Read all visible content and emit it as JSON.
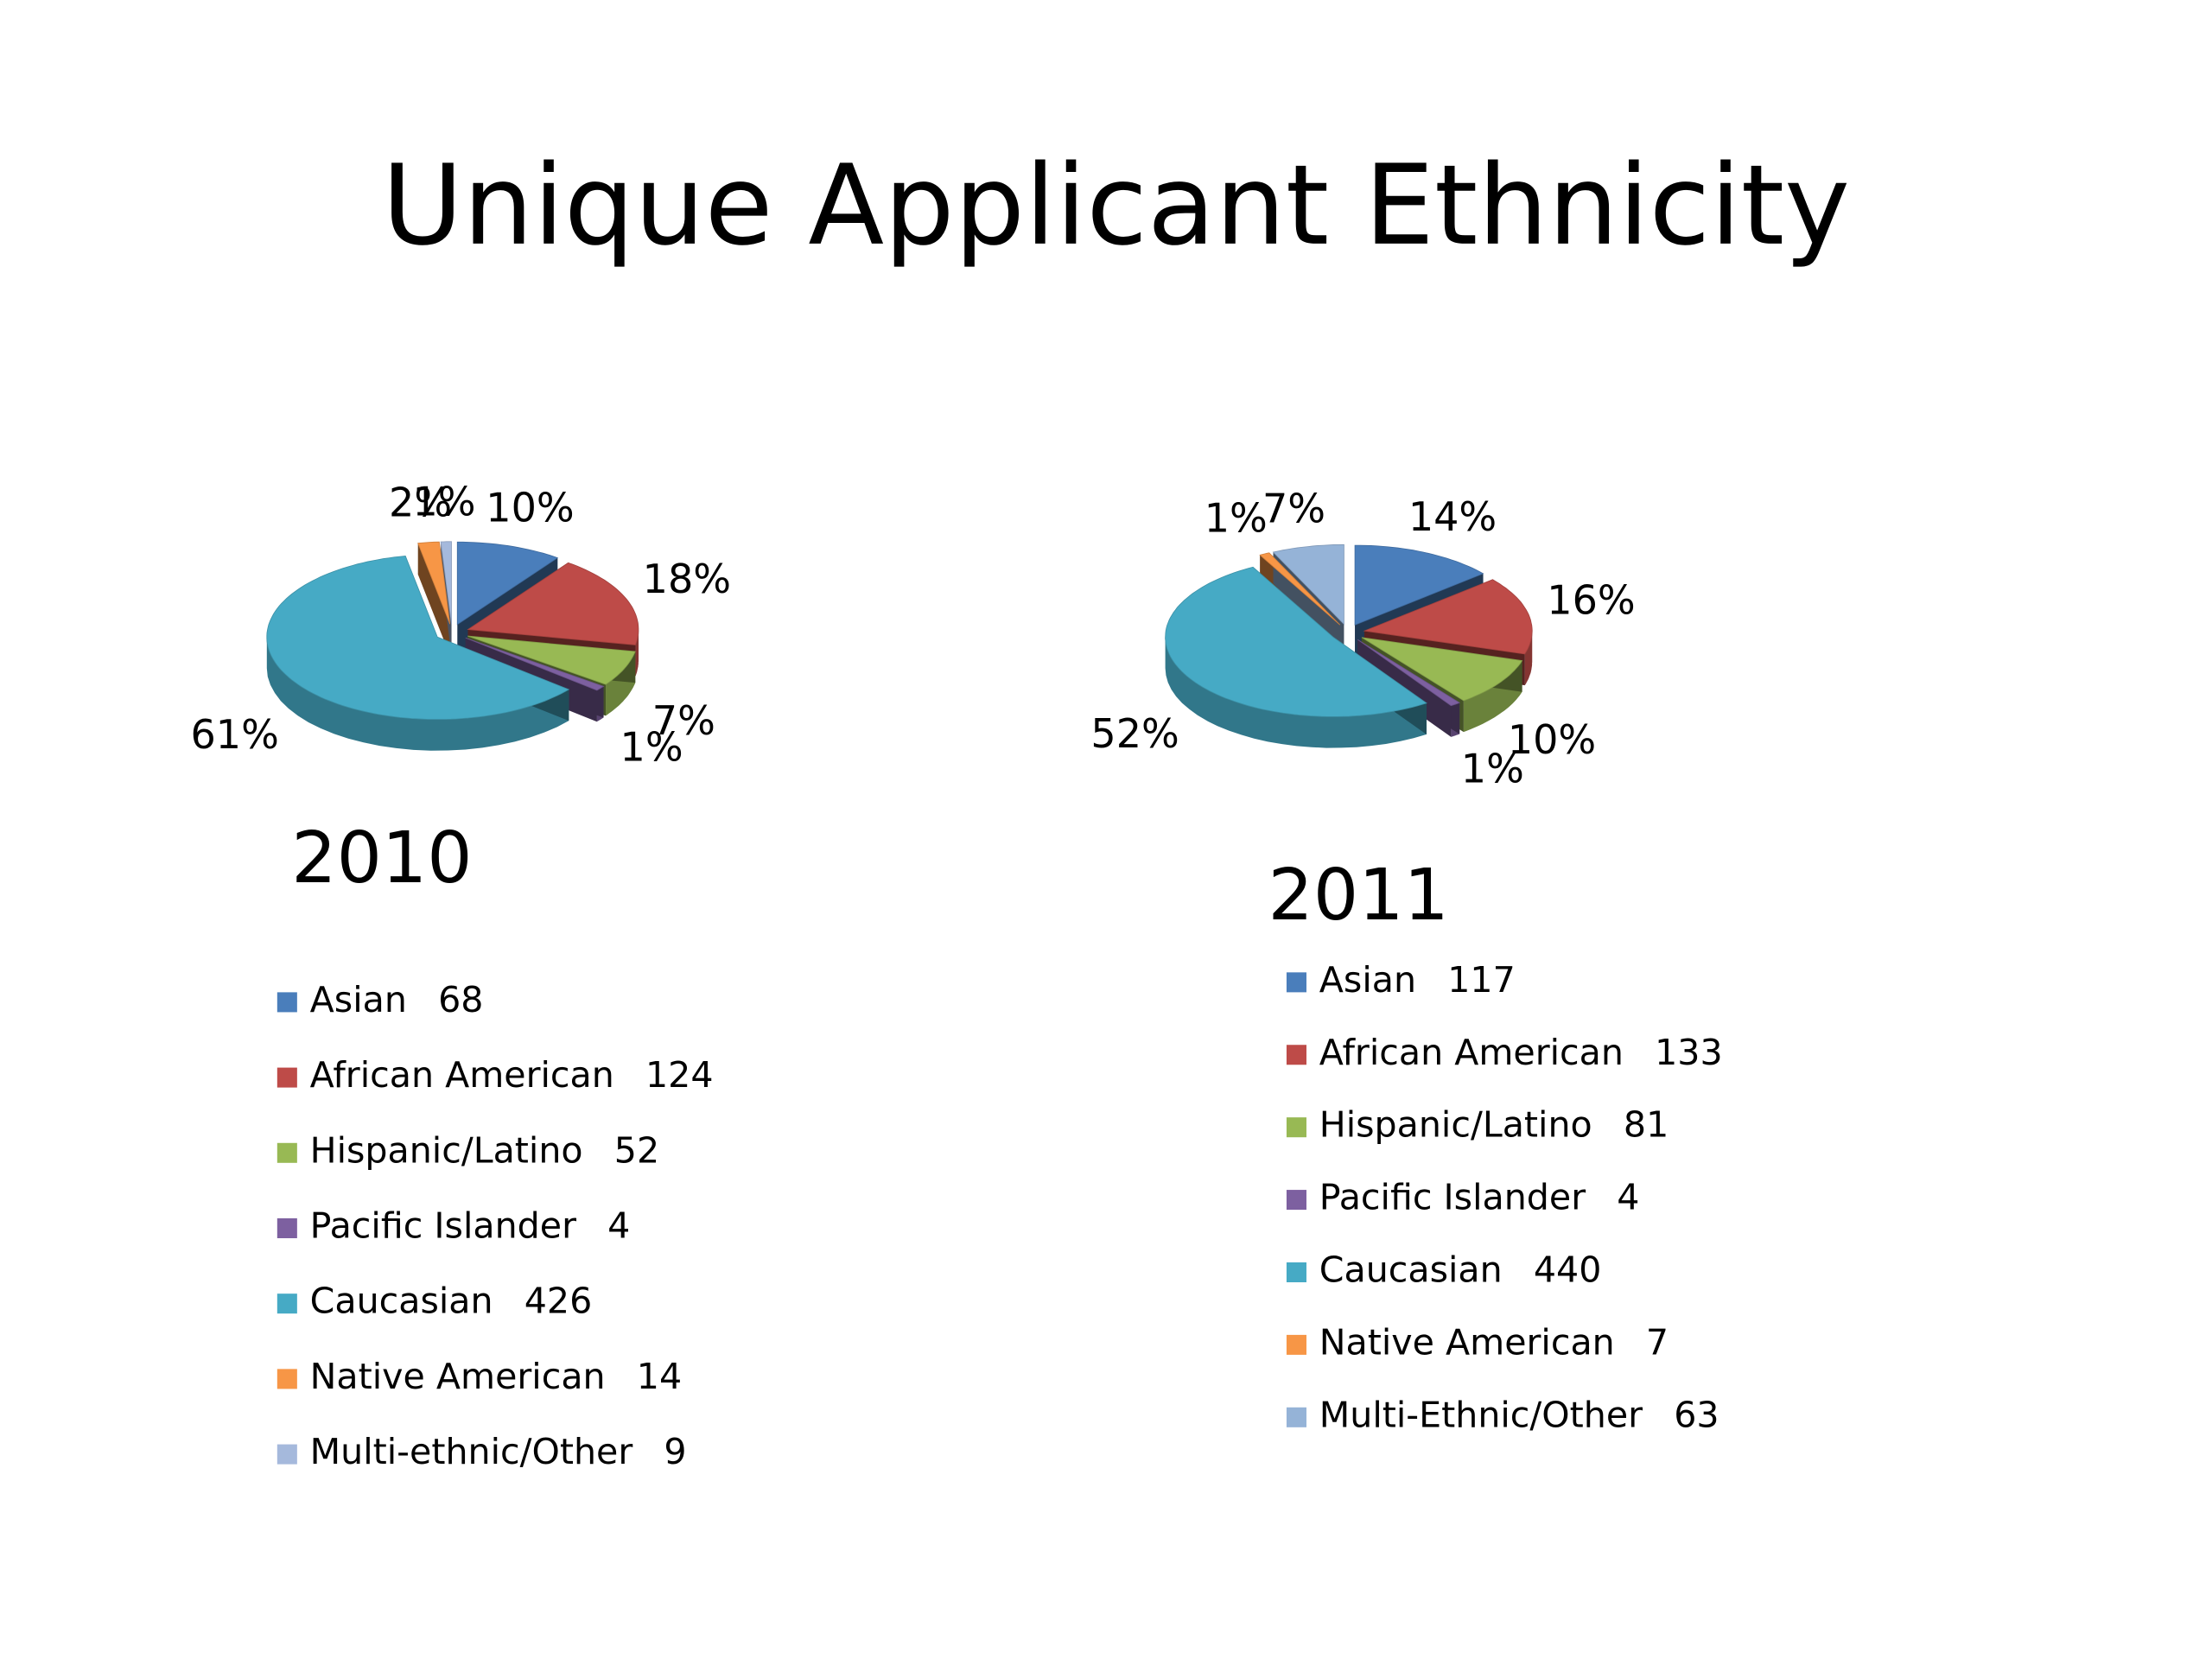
{
  "title": "Unique Applicant Ethnicity",
  "chart_data": [
    {
      "type": "pie",
      "title": "2010",
      "categories": [
        "Asian",
        "African American",
        "Hispanic/Latino",
        "Pacific Islander",
        "Caucasian",
        "Native American",
        "Multi-ethnic/Other"
      ],
      "values": [
        10,
        18,
        7,
        1,
        61,
        2,
        1
      ],
      "value_labels": [
        "10%",
        "18%",
        "7%",
        "1%",
        "61%",
        "2%",
        "1%"
      ],
      "counts": [
        68,
        124,
        52,
        4,
        426,
        14,
        9
      ],
      "colors": [
        "#4a7ebb",
        "#be4b48",
        "#98b954",
        "#7d60a0",
        "#46aac5",
        "#f79646",
        "#a5b9dc"
      ]
    },
    {
      "type": "pie",
      "title": "2011",
      "categories": [
        "Asian",
        "African American",
        "Hispanic/Latino",
        "Pacific Islander",
        "Caucasian",
        "Native American",
        "Multi-Ethnic/Other"
      ],
      "values": [
        14,
        16,
        10,
        1,
        52,
        1,
        7
      ],
      "value_labels": [
        "14%",
        "16%",
        "10%",
        "1%",
        "52%",
        "1%",
        "7%"
      ],
      "counts": [
        117,
        133,
        81,
        4,
        440,
        7,
        63
      ],
      "colors": [
        "#4a7ebb",
        "#be4b48",
        "#98b954",
        "#7d60a0",
        "#46aac5",
        "#f79646",
        "#95b3d7"
      ]
    }
  ]
}
